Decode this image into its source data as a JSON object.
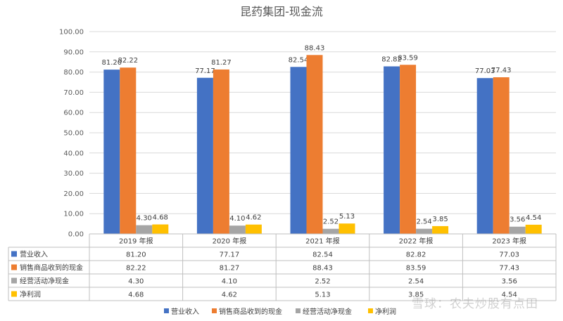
{
  "chart_data": {
    "type": "bar",
    "title": "昆药集团-现金流",
    "categories": [
      "2019 年报",
      "2020 年报",
      "2021 年报",
      "2022 年报",
      "2023 年报"
    ],
    "series": [
      {
        "name": "营业收入",
        "color": "#4472C4",
        "values": [
          81.2,
          77.17,
          82.54,
          82.82,
          77.03
        ]
      },
      {
        "name": "销售商品收到的现金",
        "color": "#ED7D31",
        "values": [
          82.22,
          81.27,
          88.43,
          83.59,
          77.43
        ]
      },
      {
        "name": "经营活动净现金",
        "color": "#A5A5A5",
        "values": [
          4.3,
          4.1,
          2.52,
          2.54,
          3.56
        ]
      },
      {
        "name": "净利润",
        "color": "#FFC000",
        "values": [
          4.68,
          4.62,
          5.13,
          3.85,
          4.54
        ]
      }
    ],
    "ylim": [
      0,
      100
    ],
    "yticks": [
      0,
      10,
      20,
      30,
      40,
      50,
      60,
      70,
      80,
      90,
      100
    ],
    "ytick_labels": [
      "0.00",
      "10.00",
      "20.00",
      "30.00",
      "40.00",
      "50.00",
      "60.00",
      "70.00",
      "80.00",
      "90.00",
      "100.00"
    ],
    "value_labels": [
      [
        "81.20",
        "77.17",
        "82.54",
        "82.82",
        "77.03"
      ],
      [
        "82.22",
        "81.27",
        "88.43",
        "83.59",
        "77.43"
      ],
      [
        "4.30",
        "4.10",
        "2.52",
        "2.54",
        "3.56"
      ],
      [
        "4.68",
        "4.62",
        "5.13",
        "3.85",
        "4.54"
      ]
    ],
    "grid": true,
    "legend": "bottom",
    "data_table": true
  },
  "watermark": "雪球：农夫炒股有点田"
}
